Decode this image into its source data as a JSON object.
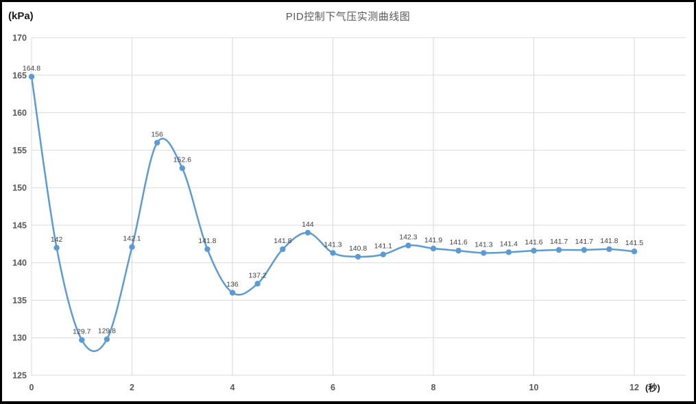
{
  "window": {
    "background": "#ffffff",
    "border_color": "#000000"
  },
  "chart_data": {
    "type": "line",
    "title": "PID控制下气压实测曲线图",
    "y_unit_label": "(kPa)",
    "x_unit_label": "(秒)",
    "xlabel": "",
    "ylabel": "",
    "x": [
      0,
      0.5,
      1,
      1.5,
      2,
      2.5,
      3,
      3.5,
      4,
      4.5,
      5,
      5.5,
      6,
      6.5,
      7,
      7.5,
      8,
      8.5,
      9,
      9.5,
      10,
      10.5,
      11,
      11.5,
      12
    ],
    "values": [
      164.8,
      142,
      129.7,
      129.8,
      142.1,
      156,
      152.6,
      141.8,
      136,
      137.2,
      141.8,
      144,
      141.3,
      140.8,
      141.1,
      142.3,
      141.9,
      141.6,
      141.3,
      141.4,
      141.6,
      141.7,
      141.7,
      141.8,
      141.5
    ],
    "point_labels": [
      "164.8",
      "142",
      "129.7",
      "129.8",
      "142.1",
      "156",
      "152.6",
      "141.8",
      "136",
      "137.2",
      "141.8",
      "144",
      "141.3",
      "140.8",
      "141.1",
      "142.3",
      "141.9",
      "141.6",
      "141.3",
      "141.4",
      "141.6",
      "141.7",
      "141.7",
      "141.8",
      "141.5"
    ],
    "xlim": [
      0,
      12
    ],
    "ylim": [
      125,
      170
    ],
    "xticks": [
      0,
      2,
      4,
      6,
      8,
      10,
      12
    ],
    "yticks": [
      125,
      130,
      135,
      140,
      145,
      150,
      155,
      160,
      165,
      170
    ],
    "grid": true,
    "smooth": true,
    "legend": "none",
    "line_color": "#5B9BD5",
    "marker_color": "#5B9BD5",
    "grid_color": "#D9D9D9",
    "tick_color": "#595959",
    "label_color": "#404040"
  }
}
